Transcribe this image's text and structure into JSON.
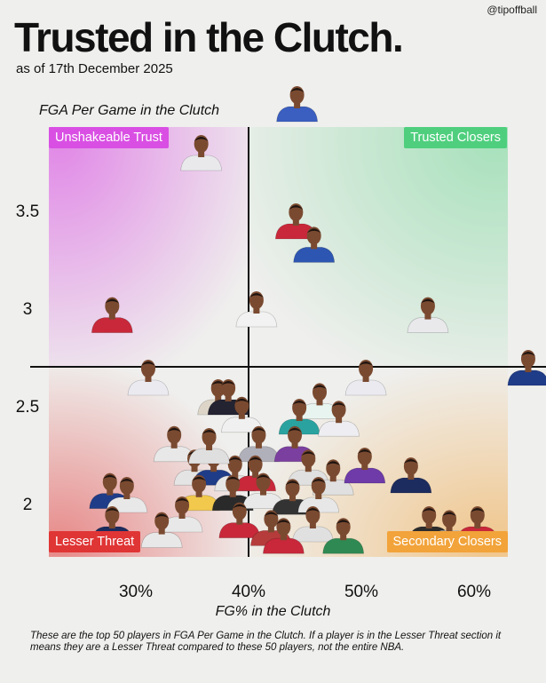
{
  "header": {
    "handle": "@tipoffball",
    "title": "Trusted in the Clutch.",
    "subtitle": "as of 17th December 2025"
  },
  "footnote": "These are the top 50 players in FGA Per Game in the Clutch. If a player is in the Lesser Threat section it means they are a Lesser Threat compared to these 50 players, not the entire NBA.",
  "colors": {
    "unshakeable": "#d94fe3",
    "trusted": "#4fcf7e",
    "lesser": "#e03535",
    "secondary": "#f2a33a"
  },
  "chart_data": {
    "type": "scatter",
    "title": "Trusted in the Clutch.",
    "xlabel": "FG% in the Clutch",
    "ylabel": "FGA Per Game in the Clutch",
    "xlim": [
      22,
      63
    ],
    "ylim": [
      1.75,
      3.9
    ],
    "x_ticks": [
      30,
      40,
      50,
      60
    ],
    "x_tick_labels": [
      "30%",
      "40%",
      "50%",
      "60%"
    ],
    "y_ticks": [
      2,
      2.5,
      3,
      3.5
    ],
    "y_tick_labels": [
      "2",
      "2.5",
      "3",
      "3.5"
    ],
    "x_divider": 40,
    "y_divider": 2.7,
    "quadrants": [
      {
        "id": "unshakeable",
        "label": "Unshakeable Trust",
        "position": "top-left"
      },
      {
        "id": "trusted",
        "label": "Trusted Closers",
        "position": "top-right"
      },
      {
        "id": "lesser",
        "label": "Lesser Threat",
        "position": "bottom-left"
      },
      {
        "id": "secondary",
        "label": "Secondary Closers",
        "position": "bottom-right"
      }
    ],
    "points": [
      {
        "x": 44.3,
        "y": 4.05,
        "jersey": "#3b5fc0"
      },
      {
        "x": 35.8,
        "y": 3.8,
        "jersey": "#e9e9ec"
      },
      {
        "x": 44.2,
        "y": 3.45,
        "jersey": "#c8283a"
      },
      {
        "x": 45.8,
        "y": 3.33,
        "jersey": "#2d56b2"
      },
      {
        "x": 27.9,
        "y": 2.97,
        "jersey": "#c8283a"
      },
      {
        "x": 40.7,
        "y": 3.0,
        "jersey": "#f2f2f2"
      },
      {
        "x": 55.9,
        "y": 2.97,
        "jersey": "#e9e9ec"
      },
      {
        "x": 64.8,
        "y": 2.7,
        "jersey": "#1f3c88"
      },
      {
        "x": 31.1,
        "y": 2.65,
        "jersey": "#eaeaf0"
      },
      {
        "x": 37.3,
        "y": 2.55,
        "jersey": "#ddd6c8"
      },
      {
        "x": 38.2,
        "y": 2.55,
        "jersey": "#232331"
      },
      {
        "x": 50.4,
        "y": 2.65,
        "jersey": "#eaeaf0"
      },
      {
        "x": 46.3,
        "y": 2.53,
        "jersey": "#e8f4f0"
      },
      {
        "x": 39.4,
        "y": 2.46,
        "jersey": "#f0f0f0"
      },
      {
        "x": 44.5,
        "y": 2.45,
        "jersey": "#2aa3a0"
      },
      {
        "x": 48.0,
        "y": 2.44,
        "jersey": "#eeeef2"
      },
      {
        "x": 33.4,
        "y": 2.31,
        "jersey": "#e8e8e8"
      },
      {
        "x": 40.9,
        "y": 2.31,
        "jersey": "#b0b0ba"
      },
      {
        "x": 44.1,
        "y": 2.31,
        "jersey": "#7b3fa0"
      },
      {
        "x": 35.2,
        "y": 2.19,
        "jersey": "#e4e4e4"
      },
      {
        "x": 36.9,
        "y": 2.19,
        "jersey": "#1f3c88"
      },
      {
        "x": 38.8,
        "y": 2.16,
        "jersey": "#e6e6e6"
      },
      {
        "x": 40.6,
        "y": 2.16,
        "jersey": "#c8283a"
      },
      {
        "x": 45.3,
        "y": 2.19,
        "jersey": "#e0e0e0"
      },
      {
        "x": 47.5,
        "y": 2.14,
        "jersey": "#e0e0e0"
      },
      {
        "x": 50.3,
        "y": 2.2,
        "jersey": "#6e3ba8"
      },
      {
        "x": 54.4,
        "y": 2.15,
        "jersey": "#1d2c5e"
      },
      {
        "x": 27.7,
        "y": 2.07,
        "jersey": "#1f3c88"
      },
      {
        "x": 29.2,
        "y": 2.05,
        "jersey": "#e8e8e8"
      },
      {
        "x": 35.6,
        "y": 2.06,
        "jersey": "#f2c94c"
      },
      {
        "x": 38.6,
        "y": 2.06,
        "jersey": "#2a2a2a"
      },
      {
        "x": 41.3,
        "y": 2.07,
        "jersey": "#e9e9e9"
      },
      {
        "x": 43.9,
        "y": 2.04,
        "jersey": "#333"
      },
      {
        "x": 46.2,
        "y": 2.05,
        "jersey": "#e7e7e7"
      },
      {
        "x": 27.9,
        "y": 1.9,
        "jersey": "#1d2c5e"
      },
      {
        "x": 34.1,
        "y": 1.95,
        "jersey": "#e8e8e8"
      },
      {
        "x": 39.2,
        "y": 1.92,
        "jersey": "#c8283a"
      },
      {
        "x": 42.0,
        "y": 1.88,
        "jersey": "#b63b3b"
      },
      {
        "x": 45.7,
        "y": 1.9,
        "jersey": "#e0e0e0"
      },
      {
        "x": 48.4,
        "y": 1.84,
        "jersey": "#2e8a52"
      },
      {
        "x": 56.0,
        "y": 1.9,
        "jersey": "#2c2c2c"
      },
      {
        "x": 57.8,
        "y": 1.88,
        "jersey": "#e6e6e6"
      },
      {
        "x": 60.3,
        "y": 1.9,
        "jersey": "#c8283a"
      },
      {
        "x": 32.3,
        "y": 1.87,
        "jersey": "#e8e8e8"
      },
      {
        "x": 43.1,
        "y": 1.84,
        "jersey": "#c8283a"
      },
      {
        "x": 36.5,
        "y": 2.3,
        "jersey": "#dfdfdf"
      }
    ]
  }
}
